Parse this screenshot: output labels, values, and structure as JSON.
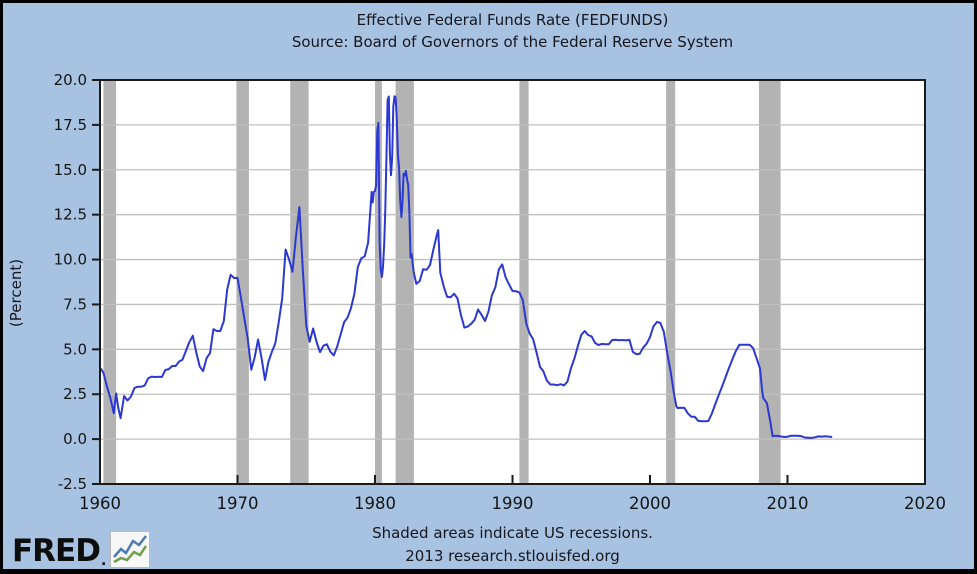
{
  "page": {
    "background_color": "#a8c3e2",
    "border_color": "#000000"
  },
  "header": {
    "title": "Effective Federal Funds Rate (FEDFUNDS)",
    "subtitle": "Source: Board of Governors of the Federal Reserve System"
  },
  "footer": {
    "note": "Shaded areas indicate US recessions.",
    "credit": "2013 research.stlouisfed.org",
    "logo_text": "FRED",
    "logo_dot": ".",
    "logo_icon": "line-chart-icon"
  },
  "chart_data": {
    "type": "line",
    "title": "Effective Federal Funds Rate (FEDFUNDS)",
    "subtitle": "Source: Board of Governors of the Federal Reserve System",
    "xlabel": "",
    "ylabel": "(Percent)",
    "xlim": [
      1960,
      2020
    ],
    "ylim": [
      -2.5,
      20.0
    ],
    "xticks": [
      "1960",
      "1970",
      "1980",
      "1990",
      "2000",
      "2010",
      "2020"
    ],
    "yticks": [
      "-2.5",
      "0.0",
      "2.5",
      "5.0",
      "7.5",
      "10.0",
      "12.5",
      "15.0",
      "17.5",
      "20.0"
    ],
    "grid": "horizontal",
    "legend_position": "none",
    "plot_bg_color": "#ffffff",
    "grid_color": "#c0c0c0",
    "recession_color": "#b3b3b3",
    "line_color": "#2b38d1",
    "frame_color": "#1a1a1a",
    "text_color": "#141414",
    "recession_note": "Shaded areas indicate US recessions.",
    "recessions": [
      [
        1960.25,
        1961.17
      ],
      [
        1969.92,
        1970.83
      ],
      [
        1973.83,
        1975.17
      ],
      [
        1980.0,
        1980.5
      ],
      [
        1981.5,
        1982.83
      ],
      [
        1990.5,
        1991.17
      ],
      [
        2001.17,
        2001.83
      ],
      [
        2007.92,
        2009.5
      ]
    ],
    "series": [
      {
        "name": "FEDFUNDS",
        "units": "percent",
        "points": [
          [
            1960.0,
            3.99
          ],
          [
            1960.25,
            3.7
          ],
          [
            1960.5,
            2.94
          ],
          [
            1960.75,
            2.3
          ],
          [
            1961.0,
            1.45
          ],
          [
            1961.17,
            2.54
          ],
          [
            1961.33,
            1.73
          ],
          [
            1961.5,
            1.17
          ],
          [
            1961.75,
            2.4
          ],
          [
            1962.0,
            2.15
          ],
          [
            1962.25,
            2.37
          ],
          [
            1962.5,
            2.84
          ],
          [
            1962.75,
            2.92
          ],
          [
            1963.0,
            2.92
          ],
          [
            1963.25,
            2.99
          ],
          [
            1963.5,
            3.38
          ],
          [
            1963.75,
            3.48
          ],
          [
            1964.0,
            3.46
          ],
          [
            1964.25,
            3.47
          ],
          [
            1964.5,
            3.46
          ],
          [
            1964.75,
            3.85
          ],
          [
            1965.0,
            3.9
          ],
          [
            1965.25,
            4.07
          ],
          [
            1965.5,
            4.07
          ],
          [
            1965.75,
            4.32
          ],
          [
            1966.0,
            4.42
          ],
          [
            1966.25,
            4.91
          ],
          [
            1966.5,
            5.41
          ],
          [
            1966.75,
            5.76
          ],
          [
            1967.0,
            4.82
          ],
          [
            1967.25,
            4.05
          ],
          [
            1967.5,
            3.79
          ],
          [
            1967.75,
            4.51
          ],
          [
            1968.0,
            4.79
          ],
          [
            1968.25,
            6.12
          ],
          [
            1968.5,
            6.02
          ],
          [
            1968.75,
            6.02
          ],
          [
            1969.0,
            6.57
          ],
          [
            1969.25,
            8.33
          ],
          [
            1969.5,
            9.15
          ],
          [
            1969.75,
            8.97
          ],
          [
            1970.0,
            8.98
          ],
          [
            1970.25,
            7.88
          ],
          [
            1970.5,
            6.7
          ],
          [
            1970.75,
            5.57
          ],
          [
            1971.0,
            3.86
          ],
          [
            1971.25,
            4.56
          ],
          [
            1971.5,
            5.55
          ],
          [
            1971.75,
            4.5
          ],
          [
            1972.0,
            3.29
          ],
          [
            1972.25,
            4.3
          ],
          [
            1972.5,
            4.87
          ],
          [
            1972.75,
            5.33
          ],
          [
            1973.0,
            6.54
          ],
          [
            1973.25,
            7.84
          ],
          [
            1973.5,
            10.56
          ],
          [
            1973.75,
            10.0
          ],
          [
            1974.0,
            9.32
          ],
          [
            1974.25,
            11.25
          ],
          [
            1974.5,
            12.92
          ],
          [
            1974.75,
            9.45
          ],
          [
            1975.0,
            6.3
          ],
          [
            1975.25,
            5.42
          ],
          [
            1975.5,
            6.16
          ],
          [
            1975.75,
            5.41
          ],
          [
            1976.0,
            4.84
          ],
          [
            1976.25,
            5.2
          ],
          [
            1976.5,
            5.28
          ],
          [
            1976.75,
            4.87
          ],
          [
            1977.0,
            4.66
          ],
          [
            1977.25,
            5.16
          ],
          [
            1977.5,
            5.82
          ],
          [
            1977.75,
            6.51
          ],
          [
            1978.0,
            6.76
          ],
          [
            1978.25,
            7.28
          ],
          [
            1978.5,
            8.1
          ],
          [
            1978.75,
            9.58
          ],
          [
            1979.0,
            10.07
          ],
          [
            1979.25,
            10.18
          ],
          [
            1979.5,
            10.94
          ],
          [
            1979.75,
            13.77
          ],
          [
            1979.833,
            13.18
          ],
          [
            1979.917,
            13.78
          ],
          [
            1980.0,
            13.82
          ],
          [
            1980.083,
            14.13
          ],
          [
            1980.167,
            17.19
          ],
          [
            1980.25,
            17.61
          ],
          [
            1980.333,
            10.98
          ],
          [
            1980.417,
            9.47
          ],
          [
            1980.5,
            9.03
          ],
          [
            1980.583,
            9.61
          ],
          [
            1980.667,
            10.87
          ],
          [
            1980.75,
            12.81
          ],
          [
            1980.833,
            15.85
          ],
          [
            1980.917,
            18.9
          ],
          [
            1981.0,
            19.08
          ],
          [
            1981.083,
            15.93
          ],
          [
            1981.167,
            14.7
          ],
          [
            1981.25,
            15.72
          ],
          [
            1981.333,
            18.52
          ],
          [
            1981.417,
            19.1
          ],
          [
            1981.5,
            19.04
          ],
          [
            1981.583,
            17.82
          ],
          [
            1981.667,
            15.87
          ],
          [
            1981.75,
            15.08
          ],
          [
            1981.833,
            13.31
          ],
          [
            1981.917,
            12.37
          ],
          [
            1982.0,
            13.22
          ],
          [
            1982.083,
            14.78
          ],
          [
            1982.167,
            14.68
          ],
          [
            1982.25,
            14.94
          ],
          [
            1982.333,
            14.45
          ],
          [
            1982.417,
            14.15
          ],
          [
            1982.5,
            12.59
          ],
          [
            1982.583,
            10.12
          ],
          [
            1982.667,
            10.31
          ],
          [
            1982.75,
            9.71
          ],
          [
            1982.833,
            9.2
          ],
          [
            1982.917,
            8.95
          ],
          [
            1983.0,
            8.65
          ],
          [
            1983.25,
            8.8
          ],
          [
            1983.5,
            9.46
          ],
          [
            1983.75,
            9.43
          ],
          [
            1984.0,
            9.69
          ],
          [
            1984.25,
            10.56
          ],
          [
            1984.5,
            11.39
          ],
          [
            1984.6,
            11.64
          ],
          [
            1984.75,
            9.27
          ],
          [
            1985.0,
            8.48
          ],
          [
            1985.25,
            7.92
          ],
          [
            1985.5,
            7.9
          ],
          [
            1985.75,
            8.1
          ],
          [
            1986.0,
            7.83
          ],
          [
            1986.25,
            6.92
          ],
          [
            1986.5,
            6.21
          ],
          [
            1986.75,
            6.27
          ],
          [
            1987.0,
            6.43
          ],
          [
            1987.25,
            6.65
          ],
          [
            1987.5,
            7.22
          ],
          [
            1987.75,
            6.92
          ],
          [
            1988.0,
            6.58
          ],
          [
            1988.25,
            7.09
          ],
          [
            1988.5,
            8.01
          ],
          [
            1988.75,
            8.45
          ],
          [
            1989.0,
            9.44
          ],
          [
            1989.25,
            9.73
          ],
          [
            1989.5,
            9.02
          ],
          [
            1989.75,
            8.61
          ],
          [
            1990.0,
            8.25
          ],
          [
            1990.25,
            8.24
          ],
          [
            1990.5,
            8.16
          ],
          [
            1990.75,
            7.74
          ],
          [
            1991.0,
            6.43
          ],
          [
            1991.25,
            5.87
          ],
          [
            1991.5,
            5.57
          ],
          [
            1991.75,
            4.81
          ],
          [
            1992.0,
            4.02
          ],
          [
            1992.25,
            3.77
          ],
          [
            1992.5,
            3.26
          ],
          [
            1992.75,
            3.04
          ],
          [
            1993.0,
            3.04
          ],
          [
            1993.25,
            3.0
          ],
          [
            1993.5,
            3.06
          ],
          [
            1993.75,
            2.99
          ],
          [
            1994.0,
            3.21
          ],
          [
            1994.25,
            3.94
          ],
          [
            1994.5,
            4.49
          ],
          [
            1994.75,
            5.17
          ],
          [
            1995.0,
            5.81
          ],
          [
            1995.25,
            6.02
          ],
          [
            1995.5,
            5.8
          ],
          [
            1995.75,
            5.72
          ],
          [
            1996.0,
            5.36
          ],
          [
            1996.25,
            5.24
          ],
          [
            1996.5,
            5.3
          ],
          [
            1996.75,
            5.28
          ],
          [
            1997.0,
            5.28
          ],
          [
            1997.25,
            5.52
          ],
          [
            1997.5,
            5.53
          ],
          [
            1997.75,
            5.51
          ],
          [
            1998.0,
            5.52
          ],
          [
            1998.25,
            5.5
          ],
          [
            1998.5,
            5.53
          ],
          [
            1998.75,
            4.86
          ],
          [
            1999.0,
            4.73
          ],
          [
            1999.25,
            4.75
          ],
          [
            1999.5,
            5.09
          ],
          [
            1999.75,
            5.31
          ],
          [
            2000.0,
            5.68
          ],
          [
            2000.25,
            6.27
          ],
          [
            2000.5,
            6.52
          ],
          [
            2000.75,
            6.47
          ],
          [
            2001.0,
            5.98
          ],
          [
            2001.25,
            4.8
          ],
          [
            2001.5,
            3.77
          ],
          [
            2001.75,
            2.49
          ],
          [
            2001.917,
            1.82
          ],
          [
            2002.0,
            1.73
          ],
          [
            2002.25,
            1.75
          ],
          [
            2002.5,
            1.74
          ],
          [
            2002.75,
            1.44
          ],
          [
            2003.0,
            1.25
          ],
          [
            2003.25,
            1.25
          ],
          [
            2003.5,
            1.02
          ],
          [
            2003.75,
            1.0
          ],
          [
            2004.0,
            1.0
          ],
          [
            2004.25,
            1.01
          ],
          [
            2004.5,
            1.43
          ],
          [
            2004.75,
            1.95
          ],
          [
            2005.0,
            2.47
          ],
          [
            2005.25,
            2.94
          ],
          [
            2005.5,
            3.46
          ],
          [
            2005.75,
            3.98
          ],
          [
            2006.0,
            4.46
          ],
          [
            2006.25,
            4.91
          ],
          [
            2006.5,
            5.25
          ],
          [
            2006.75,
            5.25
          ],
          [
            2007.0,
            5.26
          ],
          [
            2007.25,
            5.25
          ],
          [
            2007.5,
            5.07
          ],
          [
            2007.75,
            4.5
          ],
          [
            2008.0,
            3.94
          ],
          [
            2008.167,
            2.61
          ],
          [
            2008.25,
            2.28
          ],
          [
            2008.5,
            2.0
          ],
          [
            2008.75,
            0.97
          ],
          [
            2008.917,
            0.16
          ],
          [
            2009.0,
            0.18
          ],
          [
            2009.25,
            0.18
          ],
          [
            2009.5,
            0.15
          ],
          [
            2009.75,
            0.12
          ],
          [
            2010.0,
            0.13
          ],
          [
            2010.25,
            0.19
          ],
          [
            2010.5,
            0.19
          ],
          [
            2010.75,
            0.19
          ],
          [
            2011.0,
            0.16
          ],
          [
            2011.25,
            0.09
          ],
          [
            2011.5,
            0.08
          ],
          [
            2011.75,
            0.07
          ],
          [
            2012.0,
            0.1
          ],
          [
            2012.25,
            0.15
          ],
          [
            2012.5,
            0.14
          ],
          [
            2012.75,
            0.16
          ],
          [
            2013.0,
            0.14
          ],
          [
            2013.25,
            0.12
          ]
        ]
      }
    ]
  }
}
